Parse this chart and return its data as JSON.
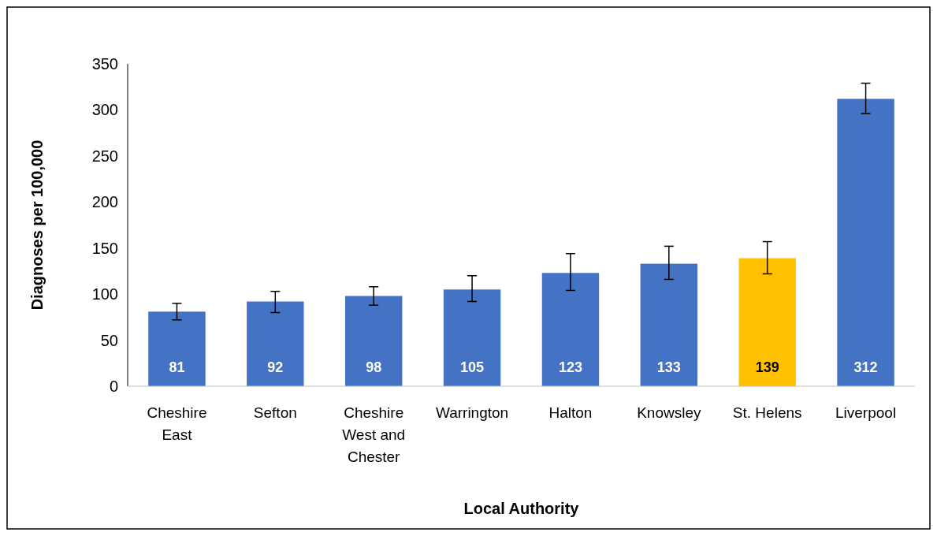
{
  "chart_data": {
    "type": "bar",
    "xlabel": "Local Authority",
    "ylabel": "Diagnoses per 100,000",
    "categories": [
      "Cheshire East",
      "Sefton",
      "Cheshire West and Chester",
      "Warrington",
      "Halton",
      "Knowsley",
      "St. Helens",
      "Liverpool"
    ],
    "values": [
      81,
      92,
      98,
      105,
      123,
      133,
      139,
      312
    ],
    "colors": [
      "#4472c4",
      "#4472c4",
      "#4472c4",
      "#4472c4",
      "#4472c4",
      "#4472c4",
      "#ffc000",
      "#4472c4"
    ],
    "errors": [
      [
        72,
        90
      ],
      [
        80,
        103
      ],
      [
        88,
        108
      ],
      [
        92,
        120
      ],
      [
        104,
        144
      ],
      [
        116,
        152
      ],
      [
        122,
        157
      ],
      [
        296,
        329
      ]
    ],
    "ylim": [
      0,
      350
    ],
    "yticks": [
      0,
      50,
      100,
      150,
      200,
      250,
      300,
      350
    ],
    "grid": false,
    "data_labels": true
  }
}
